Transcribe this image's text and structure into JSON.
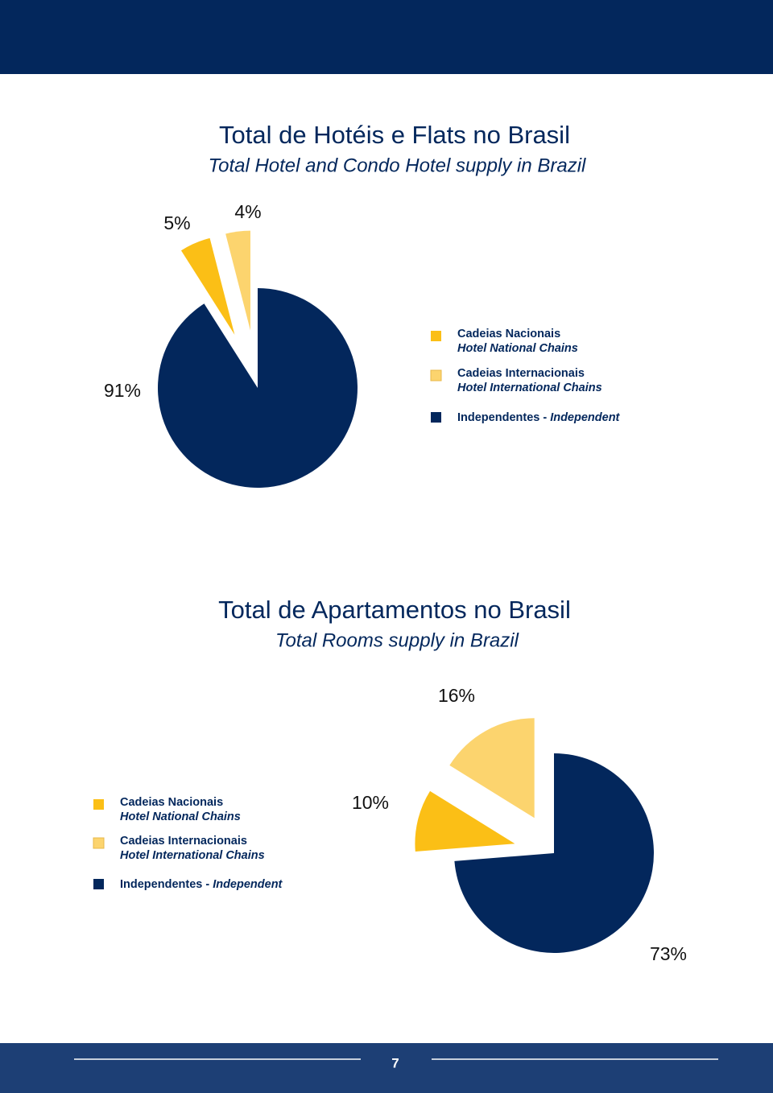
{
  "page_number": 7,
  "chart_data": [
    {
      "type": "pie",
      "title": "Total de Hotéis e Flats no Brasil",
      "subtitle": "Total Hotel and Condo Hotel supply in Brazil",
      "categories": [
        "Cadeias Nacionais",
        "Cadeias Internacionais",
        "Independentes -"
      ],
      "categories_en": [
        "Hotel National Chains",
        "Hotel International Chains",
        "Independent"
      ],
      "values": [
        5,
        4,
        91
      ],
      "value_labels": [
        "5%",
        "4%",
        "91%"
      ],
      "colors": [
        "#fbbf16",
        "#fcd46e",
        "#03275c"
      ]
    },
    {
      "type": "pie",
      "title": "Total de Apartamentos no Brasil",
      "subtitle": "Total Rooms supply in Brazil",
      "categories": [
        "Cadeias Nacionais",
        "Cadeias Internacionais",
        "Independentes -"
      ],
      "categories_en": [
        "Hotel National Chains",
        "Hotel International Chains",
        "Independent"
      ],
      "values": [
        10,
        16,
        73
      ],
      "value_labels": [
        "10%",
        "16%",
        "73%"
      ],
      "colors": [
        "#fbbf16",
        "#fcd46e",
        "#03275c"
      ]
    }
  ]
}
